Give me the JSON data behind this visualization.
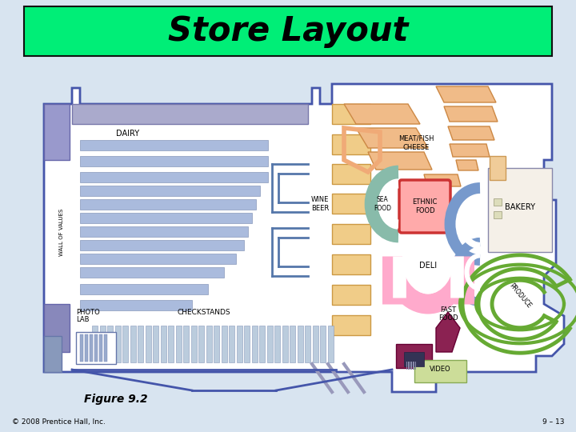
{
  "title": "Store Layout",
  "title_bg": "#00EE77",
  "bg_color": "#D8E4F0",
  "figure_caption": "Figure 9.2",
  "copyright": "© 2008 Prentice Hall, Inc.",
  "page_num": "9 – 13",
  "outline_color": "#4455AA"
}
